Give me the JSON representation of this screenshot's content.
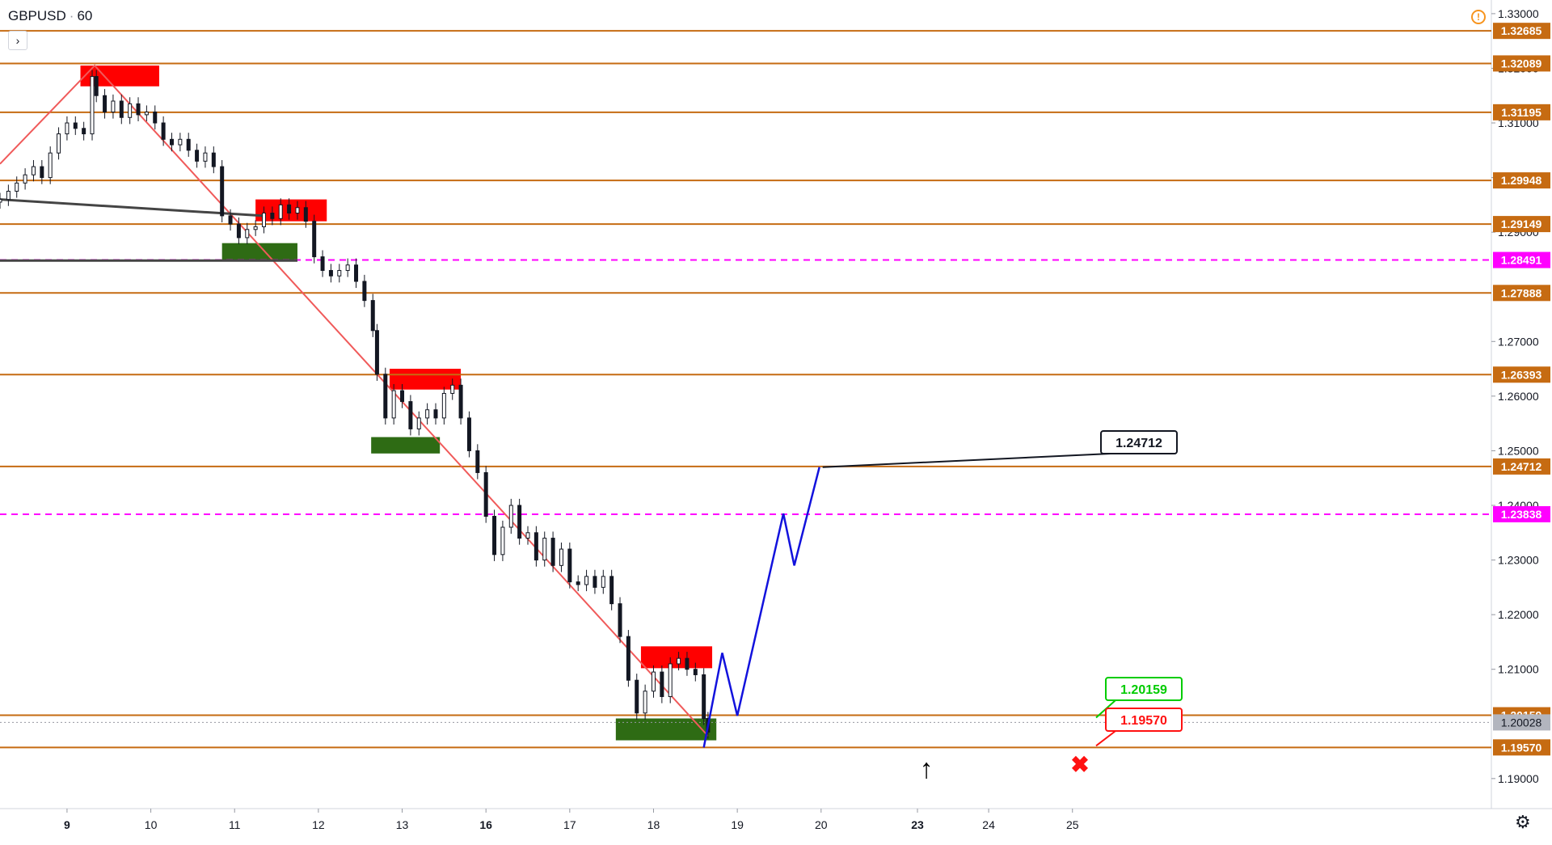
{
  "header": {
    "symbol": "GBPUSD",
    "separator": "·",
    "interval": "60",
    "collapse_glyph": "›",
    "warning_glyph": "!"
  },
  "footer": {
    "settings_glyph": "⚙"
  },
  "colors": {
    "level": "#c66b12",
    "magenta": "#ff00ff",
    "resist_zone": "#ff0000",
    "support_zone": "#2e6b14",
    "trend": "#f05a5a",
    "black_trend": "#444444",
    "forecast": "#1212dd",
    "candle": "#131722",
    "target_green": "#00cc00",
    "stop_red": "#ff1111",
    "last_price_bg": "#b2b5be"
  },
  "chart_data": {
    "type": "candlestick",
    "symbol": "GBPUSD",
    "interval": "60",
    "ylim": [
      1.1845,
      1.3325
    ],
    "xlim": [
      8.2,
      26.0
    ],
    "y_ticks": [
      "1.33000",
      "1.32000",
      "1.31000",
      "1.30000",
      "1.29000",
      "1.27000",
      "1.26000",
      "1.25000",
      "1.24000",
      "1.23000",
      "1.22000",
      "1.21000",
      "1.19000"
    ],
    "x_ticks": [
      {
        "label": "9",
        "x": 9.0,
        "bold": true
      },
      {
        "label": "10",
        "x": 10.0,
        "bold": false
      },
      {
        "label": "11",
        "x": 11.0,
        "bold": false
      },
      {
        "label": "12",
        "x": 12.0,
        "bold": false
      },
      {
        "label": "13",
        "x": 13.0,
        "bold": false
      },
      {
        "label": "16",
        "x": 14.0,
        "bold": true
      },
      {
        "label": "17",
        "x": 15.0,
        "bold": false
      },
      {
        "label": "18",
        "x": 16.0,
        "bold": false
      },
      {
        "label": "19",
        "x": 17.0,
        "bold": false
      },
      {
        "label": "20",
        "x": 18.0,
        "bold": false
      },
      {
        "label": "23",
        "x": 19.15,
        "bold": true
      },
      {
        "label": "24",
        "x": 20.0,
        "bold": false
      },
      {
        "label": "25",
        "x": 21.0,
        "bold": false
      }
    ],
    "levels": [
      {
        "price": 1.32685,
        "label": "1.32685",
        "style": "solid"
      },
      {
        "price": 1.32089,
        "label": "1.32089",
        "style": "solid"
      },
      {
        "price": 1.31195,
        "label": "1.31195",
        "style": "solid"
      },
      {
        "price": 1.29948,
        "label": "1.29948",
        "style": "solid"
      },
      {
        "price": 1.29149,
        "label": "1.29149",
        "style": "solid"
      },
      {
        "price": 1.28491,
        "label": "1.28491",
        "style": "dashed"
      },
      {
        "price": 1.27888,
        "label": "1.27888",
        "style": "solid"
      },
      {
        "price": 1.26393,
        "label": "1.26393",
        "style": "solid"
      },
      {
        "price": 1.24712,
        "label": "1.24712",
        "style": "solid"
      },
      {
        "price": 1.23838,
        "label": "1.23838",
        "style": "dashed"
      },
      {
        "price": 1.20159,
        "label": "1.20159",
        "style": "solid"
      },
      {
        "price": 1.1957,
        "label": "1.19570",
        "style": "solid"
      }
    ],
    "last_price": {
      "price": 1.20028,
      "label": "1.20028"
    },
    "resistance_zones": [
      {
        "x0": 9.16,
        "x1": 10.1,
        "y0": 1.3205,
        "y1": 1.3167
      },
      {
        "x0": 11.25,
        "x1": 12.1,
        "y0": 1.296,
        "y1": 1.292
      },
      {
        "x0": 12.85,
        "x1": 13.7,
        "y0": 1.265,
        "y1": 1.2612
      },
      {
        "x0": 15.85,
        "x1": 16.7,
        "y0": 1.2142,
        "y1": 1.2102
      }
    ],
    "support_zones": [
      {
        "x0": 10.85,
        "x1": 11.75,
        "y0": 1.288,
        "y1": 1.285
      },
      {
        "x0": 12.63,
        "x1": 13.45,
        "y0": 1.2525,
        "y1": 1.2495
      },
      {
        "x0": 15.55,
        "x1": 16.75,
        "y0": 1.201,
        "y1": 1.197
      }
    ],
    "trend_red": [
      [
        8.2,
        1.3025
      ],
      [
        9.33,
        1.3205
      ],
      [
        16.65,
        1.1978
      ]
    ],
    "trend_black": [
      [
        [
          8.2,
          1.296
        ],
        [
          11.35,
          1.293
        ]
      ],
      [
        [
          8.2,
          1.2848
        ],
        [
          11.75,
          1.2848
        ]
      ]
    ],
    "forecast_path": [
      [
        16.6,
        1.1957
      ],
      [
        16.82,
        1.213
      ],
      [
        17.0,
        1.2015
      ],
      [
        17.55,
        1.2385
      ],
      [
        17.68,
        1.229
      ],
      [
        17.98,
        1.247
      ]
    ],
    "candles": [
      [
        8.2,
        1.2955,
        1.296
      ],
      [
        8.3,
        1.296,
        1.2975
      ],
      [
        8.4,
        1.2975,
        1.299
      ],
      [
        8.5,
        1.299,
        1.3005
      ],
      [
        8.6,
        1.3005,
        1.302
      ],
      [
        8.7,
        1.302,
        1.3
      ],
      [
        8.8,
        1.3,
        1.3045
      ],
      [
        8.9,
        1.3045,
        1.308
      ],
      [
        9.0,
        1.308,
        1.31
      ],
      [
        9.1,
        1.31,
        1.309
      ],
      [
        9.2,
        1.309,
        1.308
      ],
      [
        9.3,
        1.308,
        1.3185
      ],
      [
        9.35,
        1.3185,
        1.315
      ],
      [
        9.45,
        1.315,
        1.312
      ],
      [
        9.55,
        1.312,
        1.314
      ],
      [
        9.65,
        1.314,
        1.311
      ],
      [
        9.75,
        1.311,
        1.3135
      ],
      [
        9.85,
        1.3135,
        1.3115
      ],
      [
        9.95,
        1.3115,
        1.312
      ],
      [
        10.05,
        1.312,
        1.31
      ],
      [
        10.15,
        1.31,
        1.307
      ],
      [
        10.25,
        1.307,
        1.306
      ],
      [
        10.35,
        1.306,
        1.307
      ],
      [
        10.45,
        1.307,
        1.305
      ],
      [
        10.55,
        1.305,
        1.303
      ],
      [
        10.65,
        1.303,
        1.3045
      ],
      [
        10.75,
        1.3045,
        1.302
      ],
      [
        10.85,
        1.302,
        1.293
      ],
      [
        10.95,
        1.293,
        1.2915
      ],
      [
        11.05,
        1.2915,
        1.289
      ],
      [
        11.15,
        1.289,
        1.2905
      ],
      [
        11.25,
        1.2905,
        1.291
      ],
      [
        11.35,
        1.291,
        1.2935
      ],
      [
        11.45,
        1.2935,
        1.2925
      ],
      [
        11.55,
        1.2925,
        1.295
      ],
      [
        11.65,
        1.295,
        1.2935
      ],
      [
        11.75,
        1.2935,
        1.2945
      ],
      [
        11.85,
        1.2945,
        1.292
      ],
      [
        11.95,
        1.292,
        1.2855
      ],
      [
        12.05,
        1.2855,
        1.283
      ],
      [
        12.15,
        1.283,
        1.282
      ],
      [
        12.25,
        1.282,
        1.283
      ],
      [
        12.35,
        1.283,
        1.284
      ],
      [
        12.45,
        1.284,
        1.281
      ],
      [
        12.55,
        1.281,
        1.2775
      ],
      [
        12.65,
        1.2775,
        1.272
      ],
      [
        12.7,
        1.272,
        1.264
      ],
      [
        12.8,
        1.264,
        1.256
      ],
      [
        12.9,
        1.256,
        1.261
      ],
      [
        13.0,
        1.261,
        1.259
      ],
      [
        13.1,
        1.259,
        1.254
      ],
      [
        13.2,
        1.254,
        1.256
      ],
      [
        13.3,
        1.256,
        1.2575
      ],
      [
        13.4,
        1.2575,
        1.256
      ],
      [
        13.5,
        1.256,
        1.2605
      ],
      [
        13.6,
        1.2605,
        1.262
      ],
      [
        13.7,
        1.262,
        1.256
      ],
      [
        13.8,
        1.256,
        1.25
      ],
      [
        13.9,
        1.25,
        1.246
      ],
      [
        14.0,
        1.246,
        1.238
      ],
      [
        14.1,
        1.238,
        1.231
      ],
      [
        14.2,
        1.231,
        1.236
      ],
      [
        14.3,
        1.236,
        1.24
      ],
      [
        14.4,
        1.24,
        1.234
      ],
      [
        14.5,
        1.234,
        1.235
      ],
      [
        14.6,
        1.235,
        1.23
      ],
      [
        14.7,
        1.23,
        1.234
      ],
      [
        14.8,
        1.234,
        1.229
      ],
      [
        14.9,
        1.229,
        1.232
      ],
      [
        15.0,
        1.232,
        1.226
      ],
      [
        15.1,
        1.226,
        1.2255
      ],
      [
        15.2,
        1.2255,
        1.227
      ],
      [
        15.3,
        1.227,
        1.225
      ],
      [
        15.4,
        1.225,
        1.227
      ],
      [
        15.5,
        1.227,
        1.222
      ],
      [
        15.6,
        1.222,
        1.216
      ],
      [
        15.7,
        1.216,
        1.208
      ],
      [
        15.8,
        1.208,
        1.202
      ],
      [
        15.9,
        1.202,
        1.206
      ],
      [
        16.0,
        1.206,
        1.2095
      ],
      [
        16.1,
        1.2095,
        1.205
      ],
      [
        16.2,
        1.205,
        1.211
      ],
      [
        16.3,
        1.211,
        1.212
      ],
      [
        16.4,
        1.212,
        1.21
      ],
      [
        16.5,
        1.21,
        1.209
      ],
      [
        16.6,
        1.209,
        1.201
      ],
      [
        16.65,
        1.201,
        1.1985
      ]
    ]
  },
  "annotations": {
    "target_label": "1.24712",
    "green_label": "1.20159",
    "red_label": "1.19570",
    "arrow_glyph": "↑",
    "cross_glyph": "✖"
  }
}
